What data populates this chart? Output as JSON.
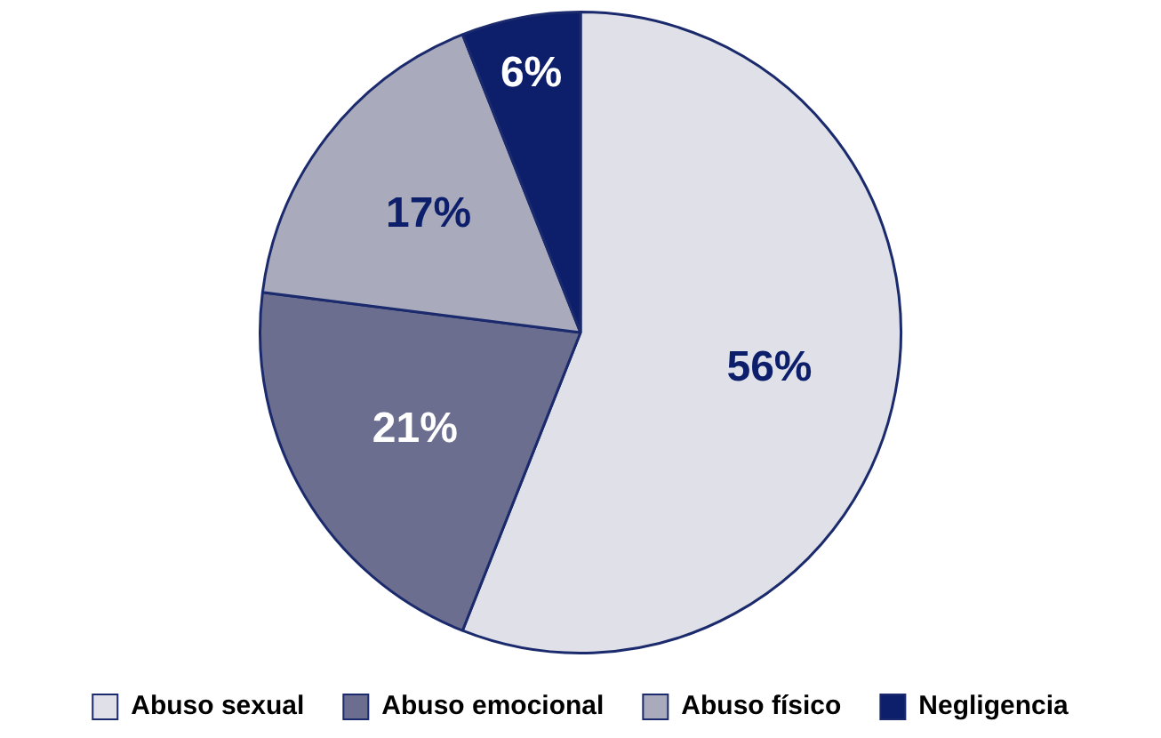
{
  "chart_data": {
    "type": "pie",
    "categories": [
      "Abuso sexual",
      "Abuso emocional",
      "Abuso físico",
      "Negligencia"
    ],
    "values": [
      56,
      21,
      17,
      6
    ],
    "colors": [
      "#e0e1e8",
      "#6b6e8f",
      "#a9abbd",
      "#0d1f6b"
    ],
    "value_labels": [
      "56%",
      "21%",
      "17%",
      "6%"
    ],
    "legend": "bottom"
  }
}
